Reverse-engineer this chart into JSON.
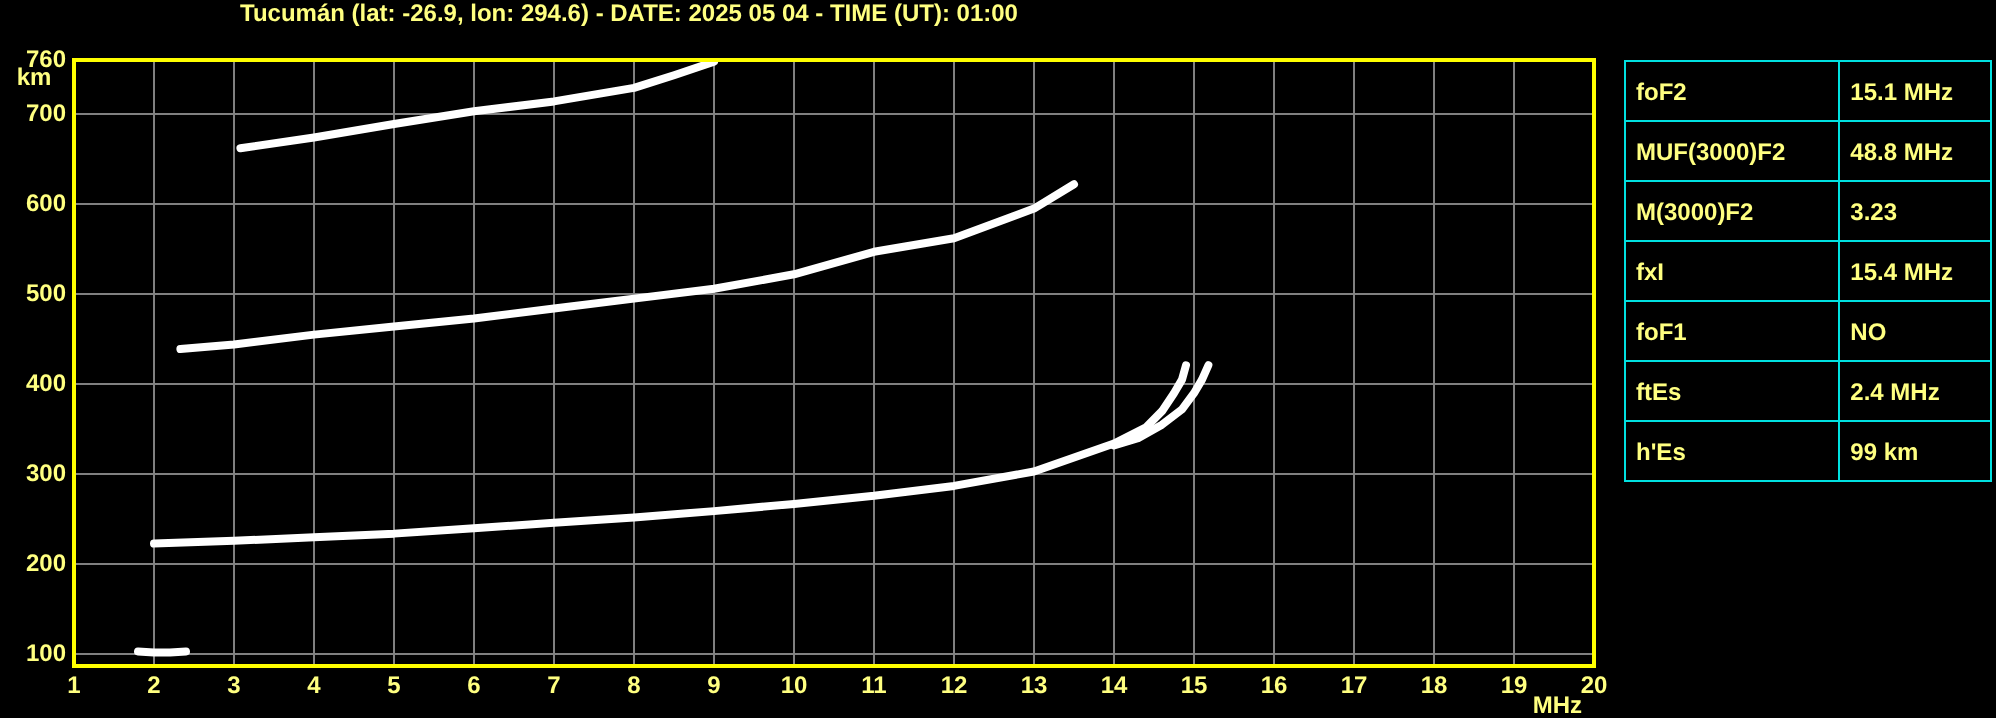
{
  "chart_data": [
    {
      "type": "line",
      "title": "Tucumán (lat: -26.9, lon: 294.6) - DATE: 2025 05 04 - TIME (UT): 01:00",
      "xlabel": "MHz",
      "ylabel": "km",
      "xlim": [
        1,
        20
      ],
      "xticks": [
        1,
        2,
        3,
        4,
        5,
        6,
        7,
        8,
        9,
        10,
        11,
        12,
        13,
        14,
        15,
        16,
        17,
        18,
        19,
        20
      ],
      "ylim": [
        87,
        760
      ],
      "yticks": [
        100,
        200,
        300,
        400,
        500,
        600,
        700,
        760
      ],
      "grid": true,
      "legend": false,
      "marker": "none",
      "line_style": "solid",
      "series": [
        {
          "color": "#ffffff",
          "x": [
            1.8,
            2.0,
            2.2,
            2.4
          ],
          "values": [
            103,
            102,
            102,
            103
          ]
        },
        {
          "color": "#ffffff",
          "x": [
            2.0,
            3,
            4,
            5,
            6,
            7,
            8,
            9,
            10,
            11,
            12,
            13,
            14,
            14.4,
            14.6,
            14.75,
            14.85,
            14.9
          ],
          "values": [
            223,
            226,
            230,
            234,
            240,
            246,
            252,
            259,
            267,
            276,
            287,
            303,
            334,
            352,
            370,
            390,
            405,
            421
          ]
        },
        {
          "color": "#ffffff",
          "x": [
            14.0,
            14.3,
            14.6,
            14.85,
            15.0,
            15.1,
            15.18
          ],
          "values": [
            332,
            340,
            355,
            372,
            390,
            405,
            421
          ]
        },
        {
          "color": "#ffffff",
          "x": [
            2.33,
            3,
            4,
            5,
            6,
            7,
            8,
            9,
            10,
            11,
            12,
            13,
            13.5
          ],
          "values": [
            439,
            444,
            455,
            464,
            473,
            484,
            495,
            506,
            522,
            547,
            562,
            595,
            622
          ]
        },
        {
          "color": "#ffffff",
          "x": [
            3.08,
            4,
            5,
            6,
            7,
            8,
            8.5,
            9.0
          ],
          "values": [
            662,
            674,
            689,
            703,
            714,
            729,
            743,
            758
          ]
        }
      ]
    },
    {
      "type": "other",
      "annotations": [
        "foF2",
        "15.1 MHz",
        "MUF(3000)F2",
        "48.8 MHz",
        "M(3000)F2",
        "3.23",
        "fxI",
        "15.4 MHz",
        "foF1",
        "NO",
        "ftEs",
        "2.4 MHz",
        "h'Es",
        "99 km"
      ]
    }
  ]
}
